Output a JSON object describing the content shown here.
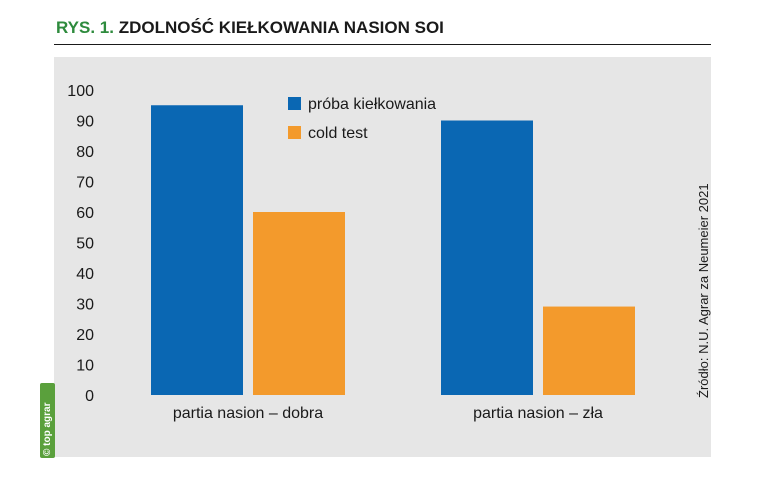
{
  "figure": {
    "prefix": "RYS. 1.",
    "title": "ZDOLNOŚĆ KIEŁKOWANIA NASION SOI",
    "source": "Źródło: N.U. Agrar za Neumeier 2021",
    "badge": "© top agrar"
  },
  "colors": {
    "title_prefix": "#2e8b3d",
    "series_blue": "#0a67b3",
    "series_orange": "#f39a2c",
    "panel": "#e6e6e6",
    "badge": "#5aa03c"
  },
  "chart_data": {
    "type": "bar",
    "title": "ZDOLNOŚĆ KIEŁKOWANIA NASION SOI",
    "xlabel": "",
    "ylabel": "",
    "categories": [
      "partia nasion – dobra",
      "partia nasion – zła"
    ],
    "series": [
      {
        "name": "próba kiełkowania",
        "values": [
          95,
          90
        ],
        "color": "#0a67b3"
      },
      {
        "name": "cold test",
        "values": [
          60,
          29
        ],
        "color": "#f39a2c"
      }
    ],
    "ylim": [
      0,
      100
    ],
    "yticks": [
      0,
      10,
      20,
      30,
      40,
      50,
      60,
      70,
      80,
      90,
      100
    ],
    "grid": false,
    "legend": "top-center"
  }
}
